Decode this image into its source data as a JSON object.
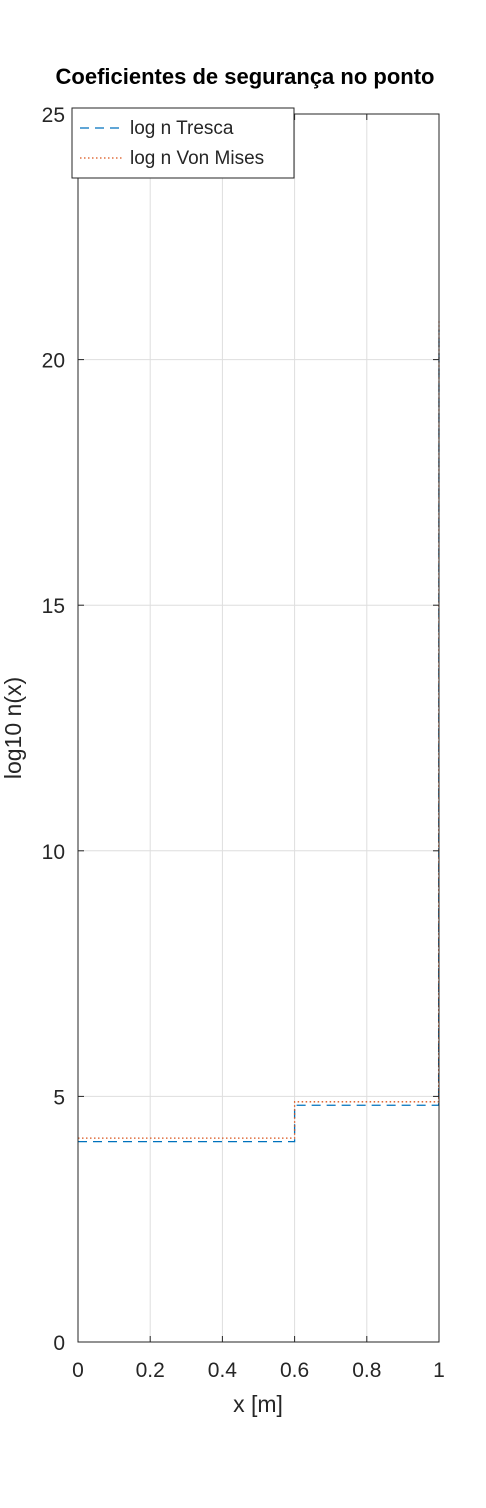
{
  "chart_data": {
    "type": "line",
    "title": "Coeficientes de segurança no ponto",
    "xlabel": "x [m]",
    "ylabel": "log10 n(x)",
    "xlim": [
      0,
      1
    ],
    "ylim": [
      0,
      25
    ],
    "xticks": [
      0,
      0.2,
      0.4,
      0.6,
      0.8,
      1
    ],
    "xtick_labels": [
      "0",
      "0.2",
      "0.4",
      "0.6",
      "0.8",
      "1"
    ],
    "yticks": [
      0,
      5,
      10,
      15,
      20,
      25
    ],
    "ytick_labels": [
      "0",
      "5",
      "10",
      "15",
      "20",
      "25"
    ],
    "grid": true,
    "legend_position": "top-left",
    "series": [
      {
        "name": "log n Tresca",
        "style": "dashed",
        "color": "#0072bd",
        "x": [
          0,
          0.6,
          0.6,
          0.999,
          0.999,
          1
        ],
        "y": [
          4.08,
          4.08,
          4.82,
          4.82,
          5.3,
          20.6
        ]
      },
      {
        "name": "log n Von Mises",
        "style": "dotted",
        "color": "#d95319",
        "x": [
          0,
          0.6,
          0.6,
          0.999,
          0.999,
          1
        ],
        "y": [
          4.15,
          4.15,
          4.89,
          4.89,
          5.4,
          20.8
        ]
      }
    ]
  }
}
